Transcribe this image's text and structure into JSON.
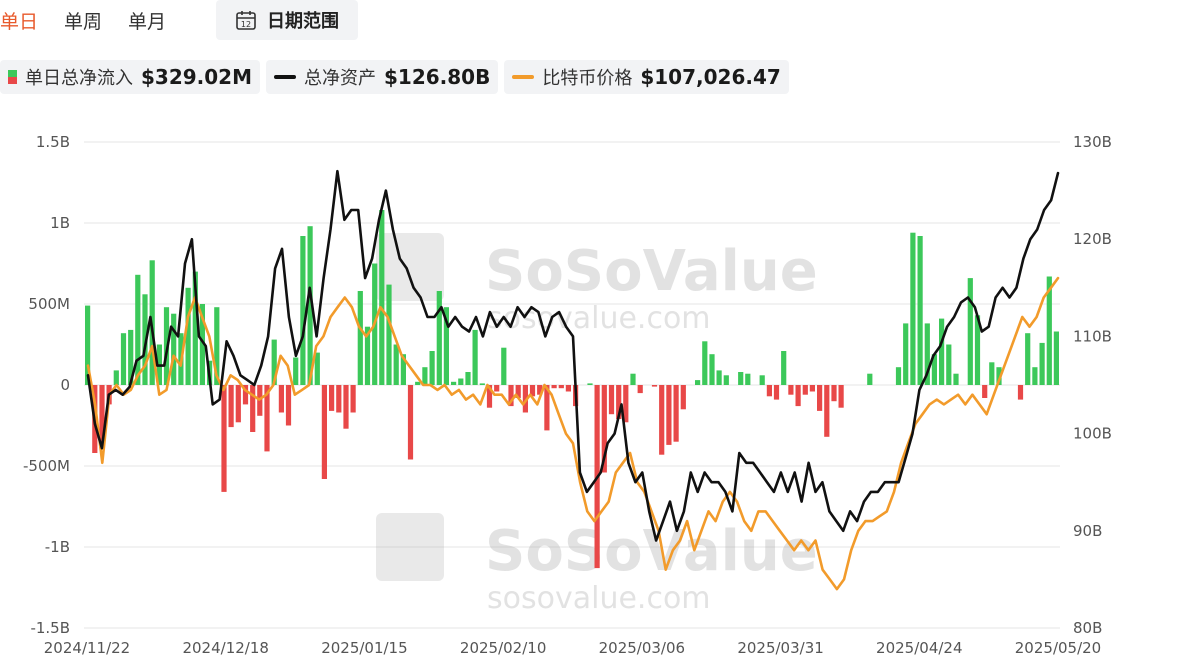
{
  "tabs": [
    {
      "label": "单日",
      "active": true
    },
    {
      "label": "单周",
      "active": false
    },
    {
      "label": "单月",
      "active": false
    }
  ],
  "date_range": {
    "label": "日期范围",
    "icon": "calendar-icon",
    "icon_day": "12"
  },
  "legend": {
    "flow": {
      "name": "单日总净流入",
      "value": "$329.02M"
    },
    "assets": {
      "name": "总净资产",
      "value": "$126.80B"
    },
    "btc": {
      "name": "比特币价格",
      "value": "$107,026.47"
    }
  },
  "watermark": {
    "brand": "SoSoValue",
    "url": "sosovalue.com"
  },
  "colors": {
    "inflow": "#3cc85a",
    "outflow": "#e84848",
    "assets_line": "#111111",
    "btc_line": "#f29b2b",
    "grid": "#e6e6e6"
  },
  "chart_data": {
    "type": "bar",
    "x_tick_labels": [
      "2024/11/22",
      "2024/12/18",
      "2025/01/15",
      "2025/02/10",
      "2025/03/06",
      "2025/03/31",
      "2025/04/24",
      "2025/05/20"
    ],
    "y_left_ticks": [
      "1.5B",
      "1B",
      "500M",
      "0",
      "-500M",
      "-1B",
      "-1.5B"
    ],
    "y_left_range": [
      -1500,
      1500
    ],
    "y_left_unit": "M",
    "y_right_ticks": [
      "130B",
      "120B",
      "110B",
      "100B",
      "90B",
      "80B"
    ],
    "y_right_range": [
      80,
      130
    ],
    "y_right_unit": "B",
    "grid": true,
    "series": [
      {
        "name": "单日总净流入",
        "kind": "bar",
        "axis": "left",
        "color_positive": "#3cc85a",
        "color_negative": "#e84848",
        "values": [
          490,
          -420,
          -390,
          -120,
          90,
          320,
          340,
          680,
          560,
          770,
          250,
          480,
          440,
          320,
          600,
          700,
          500,
          150,
          480,
          -660,
          -260,
          -230,
          -120,
          -290,
          -190,
          -410,
          280,
          -170,
          -250,
          170,
          920,
          980,
          200,
          -580,
          -160,
          -170,
          -270,
          -170,
          580,
          360,
          750,
          1080,
          620,
          250,
          190,
          -460,
          20,
          110,
          210,
          580,
          480,
          20,
          40,
          80,
          340,
          10,
          -140,
          -40,
          230,
          -130,
          -80,
          -170,
          -70,
          -60,
          -280,
          -20,
          -20,
          -40,
          -130,
          0,
          10,
          -1130,
          -540,
          -180,
          -210,
          -230,
          70,
          -50,
          0,
          -10,
          -430,
          -370,
          -350,
          -150,
          0,
          30,
          270,
          190,
          90,
          60,
          0,
          80,
          70,
          0,
          60,
          -70,
          -90,
          210,
          -60,
          -130,
          -60,
          -40,
          -160,
          -320,
          -100,
          -140,
          0,
          0,
          0,
          70,
          0,
          0,
          0,
          110,
          380,
          940,
          920,
          380,
          190,
          410,
          250,
          70,
          0,
          660,
          430,
          -80,
          140,
          110,
          0,
          0,
          -90,
          320,
          110,
          260,
          670,
          330
        ]
      },
      {
        "name": "总净资产",
        "kind": "line",
        "axis": "right",
        "color": "#111111",
        "values": [
          106,
          101,
          98.5,
          104,
          104.5,
          104,
          104.8,
          107.5,
          108,
          112,
          107,
          107,
          111,
          110,
          117.5,
          120,
          110,
          109,
          103,
          103.5,
          109.5,
          108,
          106,
          105.5,
          105,
          107,
          110,
          117,
          119,
          112,
          108,
          110,
          115,
          110,
          116,
          121,
          127,
          122,
          123,
          123,
          116,
          118,
          122,
          125,
          121,
          118,
          117,
          115,
          114,
          112,
          112,
          113,
          111,
          112,
          111,
          110.5,
          112,
          110,
          112.5,
          111,
          112,
          111,
          113,
          112,
          113,
          112.5,
          110,
          112,
          112.5,
          111,
          110,
          96,
          94,
          95,
          96,
          99,
          100,
          103,
          97,
          95,
          96,
          92,
          89,
          91,
          93,
          90,
          92,
          96,
          94,
          96,
          95,
          95,
          94,
          92,
          98,
          97,
          97,
          96,
          95,
          94,
          96,
          94,
          96,
          93,
          97,
          94,
          95,
          92,
          91,
          90,
          92,
          91,
          93,
          94,
          94,
          95,
          95,
          95,
          97.5,
          100,
          104.5,
          106,
          108,
          109,
          111,
          112,
          113.5,
          114,
          113,
          110.5,
          111,
          114,
          115,
          114,
          115,
          118,
          120,
          121,
          123,
          124,
          126.8
        ],
        "x_count_note": "spans full x range"
      },
      {
        "name": "比特币价格",
        "kind": "line",
        "axis": "right",
        "color": "#f29b2b",
        "values": [
          107,
          103,
          97,
          104,
          105,
          104,
          104.5,
          106,
          107,
          109,
          104,
          104.5,
          108,
          107,
          112,
          114,
          112,
          110,
          106,
          104.5,
          106,
          105.5,
          104.5,
          104,
          103.5,
          104,
          105,
          108,
          107,
          104,
          104.5,
          105,
          109,
          110,
          112,
          113,
          114,
          113,
          111,
          110,
          111,
          113,
          112,
          110,
          108,
          107,
          106,
          105,
          105,
          104.5,
          105,
          104,
          104.5,
          103.5,
          104,
          103,
          105,
          104,
          104,
          103,
          104,
          103,
          104,
          103,
          105,
          104,
          102,
          100,
          99,
          95,
          92,
          91,
          92,
          93,
          96,
          97,
          98,
          95,
          94,
          92,
          90,
          86,
          88,
          89,
          91,
          88,
          90,
          92,
          91,
          93,
          94,
          93,
          91,
          90,
          92,
          92,
          91,
          90,
          89,
          88,
          89,
          88,
          89,
          86,
          85,
          84,
          85,
          88,
          90,
          91,
          91,
          91.5,
          92,
          94,
          97,
          99,
          101,
          102,
          103,
          103.5,
          103,
          103.5,
          104,
          103,
          104,
          103,
          102,
          104,
          106,
          108,
          110,
          112,
          111,
          112,
          114,
          115,
          116
        ],
        "x_count_note": "spans full x range"
      }
    ]
  }
}
